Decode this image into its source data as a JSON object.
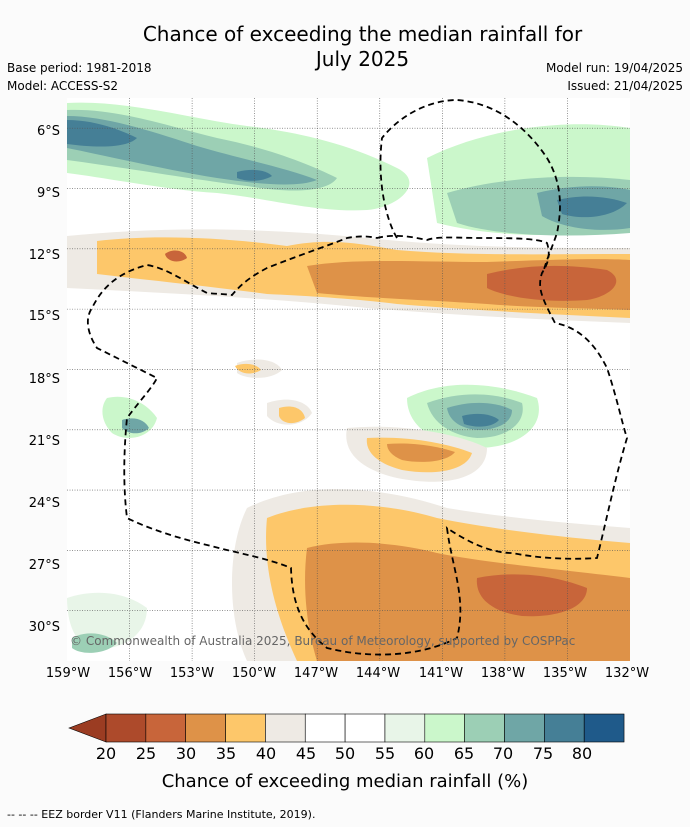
{
  "header": {
    "title_line1": "Chance of exceeding the median rainfall for",
    "title_line2": "July 2025",
    "base_period": "Base period: 1981-2018",
    "model": "Model: ACCESS-S2",
    "model_run": "Model run: 19/04/2025",
    "issued": "Issued: 21/04/2025"
  },
  "map": {
    "copyright": "© Commonwealth of Australia 2025, Bureau of Meteorology, supported by COSPPac",
    "lat_labels": [
      "6°S",
      "9°S",
      "12°S",
      "15°S",
      "18°S",
      "21°S",
      "24°S",
      "27°S",
      "30°S"
    ],
    "lon_labels": [
      "159°W",
      "156°W",
      "153°W",
      "150°W",
      "147°W",
      "144°W",
      "141°W",
      "138°W",
      "135°W",
      "132°W"
    ],
    "lat_range": [
      -32.5,
      -4.5
    ],
    "lon_range": [
      -159,
      -132
    ],
    "boundary_label": "EEZ border",
    "colors": {
      "c20": "#a9452a",
      "c25": "#c8653a",
      "c30": "#de9248",
      "c35": "#fdc76a",
      "c40": "#eeeae4",
      "c45": "#ffffff",
      "c55": "#e8f5e8",
      "c60": "#cbf7cb",
      "c65": "#9ccfb5",
      "c70": "#6fa6a6",
      "c75": "#457f96",
      "c80": "#1f5a8a"
    }
  },
  "colorbar": {
    "ticks": [
      "20",
      "25",
      "30",
      "35",
      "40",
      "45",
      "50",
      "55",
      "60",
      "65",
      "70",
      "75",
      "80"
    ],
    "colors": [
      "#9b3c22",
      "#ad4a2b",
      "#c8653a",
      "#de9248",
      "#fdc76a",
      "#eeeae4",
      "#ffffff",
      "#ffffff",
      "#e8f5e8",
      "#cbf7cb",
      "#9ccfb5",
      "#6fa6a6",
      "#457f96",
      "#1f5a8a"
    ],
    "label": "Chance of exceeding median rainfall (%)"
  },
  "legend": {
    "footnote": "--  --  -- EEZ border V11 (Flanders Marine Institute, 2019)."
  }
}
